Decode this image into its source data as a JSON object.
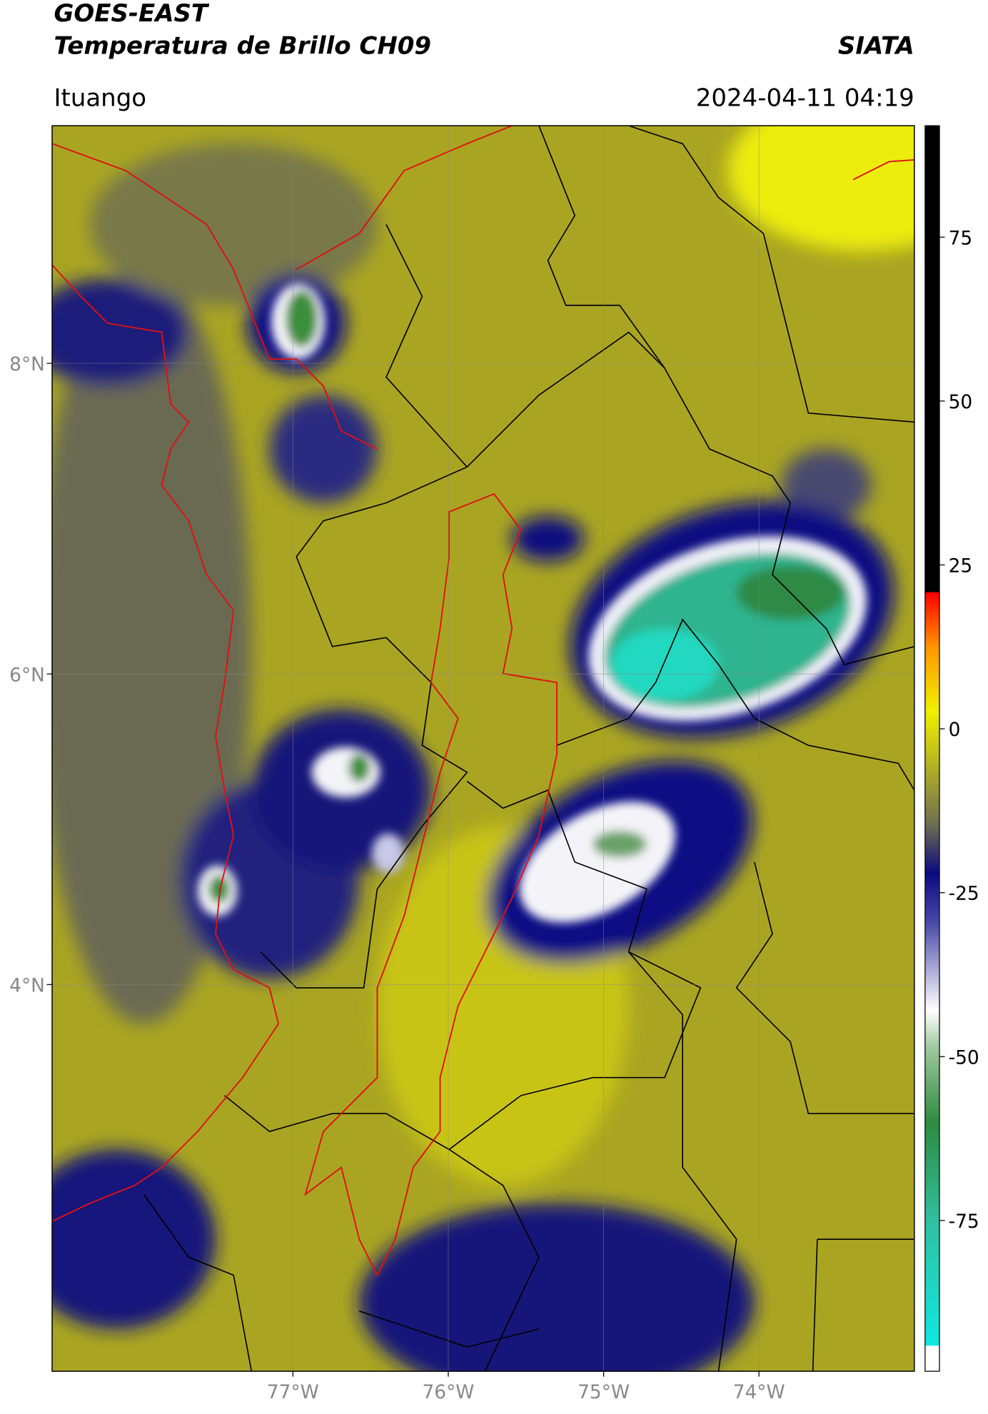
{
  "header": {
    "title": "GOES-EAST",
    "subtitle": "Temperatura de Brillo CH09",
    "source": "SIATA",
    "region": "Ituango",
    "timestamp": "2024-04-11 04:19"
  },
  "map": {
    "xlim": [
      -78.55,
      -73.0
    ],
    "ylim": [
      1.51,
      9.53
    ],
    "xticks": [
      {
        "value": -77,
        "label": "77°W"
      },
      {
        "value": -76,
        "label": "76°W"
      },
      {
        "value": -75,
        "label": "75°W"
      },
      {
        "value": -74,
        "label": "74°W"
      }
    ],
    "yticks": [
      {
        "value": 8,
        "label": "8°N"
      },
      {
        "value": 6,
        "label": "6°N"
      },
      {
        "value": 4,
        "label": "4°N"
      }
    ],
    "grid": true
  },
  "colorbar": {
    "limits": [
      -98,
      92
    ],
    "ticks": [
      75,
      50,
      25,
      0,
      -25,
      -50,
      -75
    ]
  }
}
